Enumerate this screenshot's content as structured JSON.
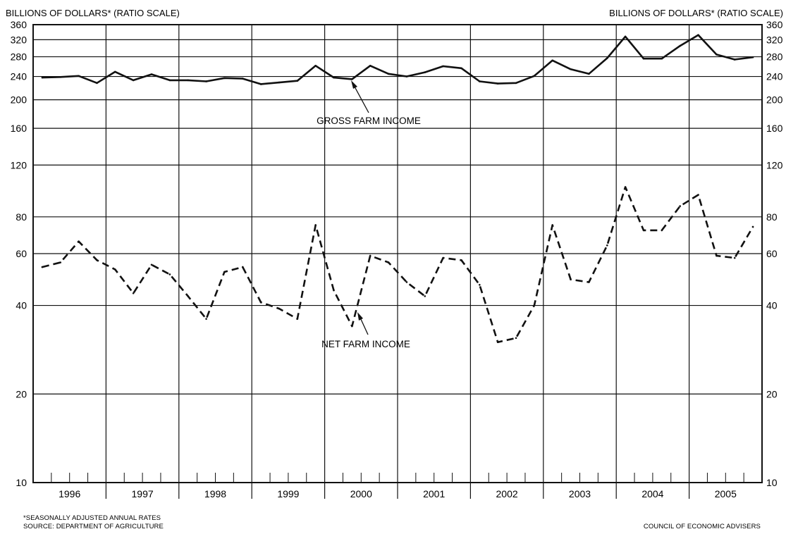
{
  "chart_data": {
    "type": "line",
    "scale": "log",
    "left_axis_title": "BILLIONS OF DOLLARS* (RATIO SCALE)",
    "right_axis_title": "BILLIONS OF DOLLARS* (RATIO SCALE)",
    "y_ticks": [
      "360",
      "320",
      "280",
      "240",
      "200",
      "160",
      "120",
      "80",
      "60",
      "40",
      "20",
      "10"
    ],
    "y_tick_values": [
      360,
      320,
      280,
      240,
      200,
      160,
      120,
      80,
      60,
      40,
      20,
      10
    ],
    "ylim": [
      10,
      360
    ],
    "years": [
      "1996",
      "1997",
      "1998",
      "1999",
      "2000",
      "2001",
      "2002",
      "2003",
      "2004",
      "2005"
    ],
    "x_periods": "quarterly, 1996 Q1 through 2005 Q4",
    "grid": true,
    "series": [
      {
        "name": "GROSS FARM INCOME",
        "style": "solid",
        "values": [
          238,
          239,
          241,
          228,
          249,
          233,
          244,
          233,
          233,
          231,
          237,
          236,
          226,
          229,
          232,
          261,
          238,
          235,
          261,
          245,
          240,
          248,
          260,
          256,
          231,
          227,
          228,
          241,
          272,
          254,
          245,
          277,
          328,
          276,
          276,
          305,
          332,
          285,
          274,
          279
        ]
      },
      {
        "name": "NET FARM INCOME",
        "style": "dashed",
        "values": [
          54,
          56,
          66,
          57,
          53,
          44,
          55,
          51,
          43,
          36,
          52,
          54,
          41,
          39,
          36,
          75,
          45,
          34,
          59,
          56,
          48,
          43,
          58,
          57,
          47,
          30,
          31,
          40,
          75,
          49,
          48,
          64,
          101,
          72,
          72,
          87,
          95,
          59,
          58,
          74
        ]
      }
    ],
    "annotations": [
      "GROSS FARM INCOME",
      "NET FARM INCOME"
    ],
    "footnote": "*SEASONALLY ADJUSTED ANNUAL RATES",
    "source": "SOURCE: DEPARTMENT OF AGRICULTURE",
    "credit": "COUNCIL OF ECONOMIC ADVISERS"
  }
}
